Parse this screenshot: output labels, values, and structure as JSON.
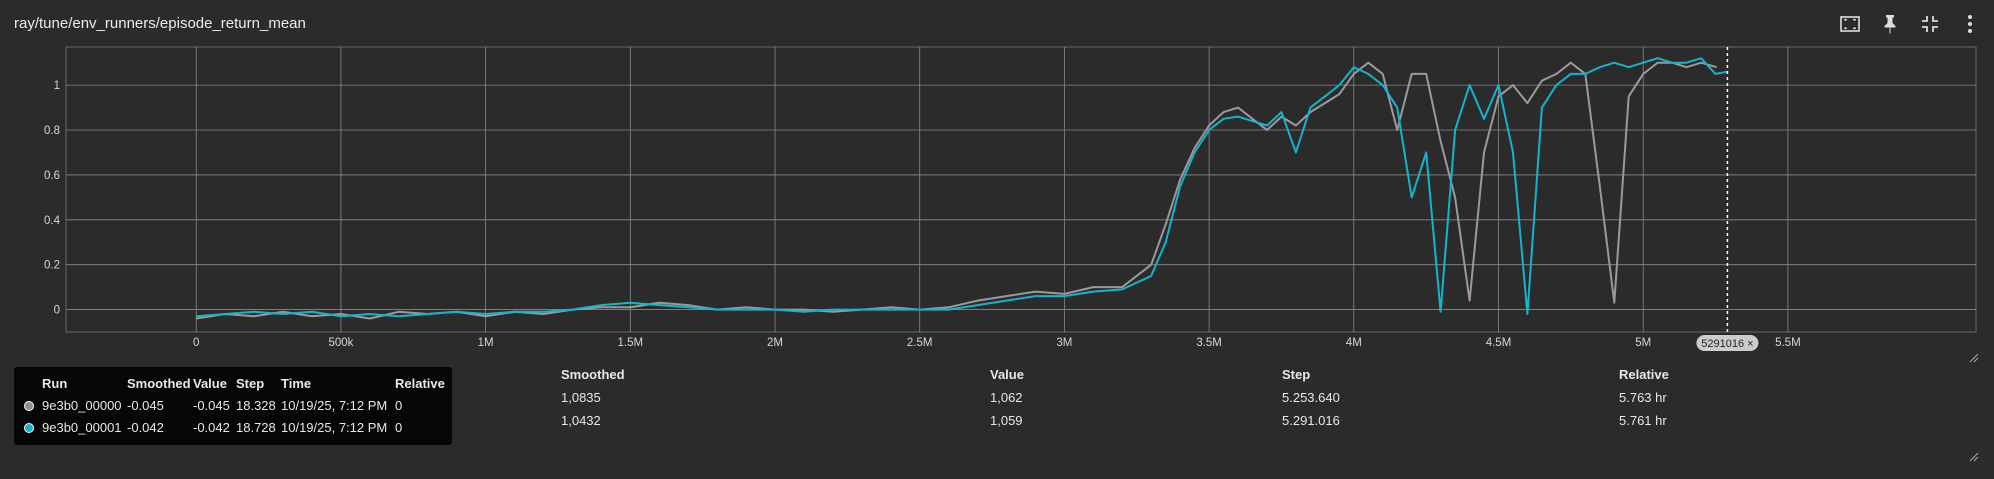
{
  "header": {
    "title": "ray/tune/env_runners/episode_return_mean"
  },
  "toolbar_icons": [
    "fit-domain-icon",
    "pin-icon",
    "collapse-icon",
    "more-icon"
  ],
  "cursor_label": "5291016 ×",
  "legend": {
    "headers": [
      "Run",
      "Smoothed",
      "Value",
      "Step",
      "Time",
      "Relative"
    ],
    "rows": [
      {
        "color": "#8e8e8e",
        "run": "9e3b0_00000",
        "smoothed": "-0.045",
        "value": "-0.045",
        "step": "18.328",
        "time": "10/19/25, 7:12 PM",
        "relative": "0"
      },
      {
        "color": "#12b5cb",
        "run": "9e3b0_00001",
        "smoothed": "-0.042",
        "value": "-0.042",
        "step": "18.728",
        "time": "10/19/25, 7:12 PM",
        "relative": "0"
      }
    ]
  },
  "table": {
    "headers": [
      "Smoothed",
      "Value",
      "Step",
      "Relative"
    ],
    "rows": [
      [
        "1,0835",
        "1,062",
        "5.253.640",
        "5.763 hr"
      ],
      [
        "1,0432",
        "1,059",
        "5.291.016",
        "5.761 hr"
      ]
    ]
  },
  "chart_data": {
    "type": "line",
    "title": "ray/tune/env_runners/episode_return_mean",
    "xlabel": "",
    "ylabel": "",
    "xlim": [
      -450000,
      6150000
    ],
    "ylim": [
      -0.1,
      1.17
    ],
    "x_ticks": [
      0,
      500000,
      1000000,
      1500000,
      2000000,
      2500000,
      3000000,
      3500000,
      4000000,
      4500000,
      5000000,
      5500000
    ],
    "x_tick_labels": [
      "0",
      "500k",
      "1M",
      "1.5M",
      "2M",
      "2.5M",
      "3M",
      "3.5M",
      "4M",
      "4.5M",
      "5M",
      "5.5M"
    ],
    "y_ticks": [
      0,
      0.2,
      0.4,
      0.6,
      0.8,
      1
    ],
    "y_tick_labels": [
      "0",
      "0.2",
      "0.4",
      "0.6",
      "0.8",
      "1"
    ],
    "grid": true,
    "cursor_x": 5291016,
    "series": [
      {
        "name": "9e3b0_00000",
        "color": "#9a9a9a",
        "points": [
          [
            0,
            -0.04
          ],
          [
            100000,
            -0.02
          ],
          [
            200000,
            -0.03
          ],
          [
            300000,
            -0.01
          ],
          [
            400000,
            -0.03
          ],
          [
            500000,
            -0.02
          ],
          [
            600000,
            -0.04
          ],
          [
            700000,
            -0.01
          ],
          [
            800000,
            -0.02
          ],
          [
            900000,
            -0.01
          ],
          [
            1000000,
            -0.03
          ],
          [
            1100000,
            -0.01
          ],
          [
            1200000,
            -0.02
          ],
          [
            1300000,
            0
          ],
          [
            1400000,
            0.01
          ],
          [
            1500000,
            0.01
          ],
          [
            1600000,
            0.03
          ],
          [
            1700000,
            0.02
          ],
          [
            1800000,
            0
          ],
          [
            1900000,
            0.01
          ],
          [
            2000000,
            0
          ],
          [
            2100000,
            0
          ],
          [
            2200000,
            -0.01
          ],
          [
            2300000,
            0
          ],
          [
            2400000,
            0.01
          ],
          [
            2500000,
            0
          ],
          [
            2600000,
            0.01
          ],
          [
            2700000,
            0.04
          ],
          [
            2800000,
            0.06
          ],
          [
            2900000,
            0.08
          ],
          [
            3000000,
            0.07
          ],
          [
            3100000,
            0.1
          ],
          [
            3200000,
            0.1
          ],
          [
            3300000,
            0.2
          ],
          [
            3350000,
            0.38
          ],
          [
            3400000,
            0.58
          ],
          [
            3450000,
            0.72
          ],
          [
            3500000,
            0.82
          ],
          [
            3550000,
            0.88
          ],
          [
            3600000,
            0.9
          ],
          [
            3650000,
            0.85
          ],
          [
            3700000,
            0.8
          ],
          [
            3750000,
            0.86
          ],
          [
            3800000,
            0.82
          ],
          [
            3850000,
            0.88
          ],
          [
            3900000,
            0.92
          ],
          [
            3950000,
            0.96
          ],
          [
            4000000,
            1.05
          ],
          [
            4050000,
            1.1
          ],
          [
            4100000,
            1.05
          ],
          [
            4150000,
            0.8
          ],
          [
            4200000,
            1.05
          ],
          [
            4250000,
            1.05
          ],
          [
            4300000,
            0.75
          ],
          [
            4350000,
            0.5
          ],
          [
            4400000,
            0.04
          ],
          [
            4450000,
            0.7
          ],
          [
            4500000,
            0.95
          ],
          [
            4550000,
            1.0
          ],
          [
            4600000,
            0.92
          ],
          [
            4650000,
            1.02
          ],
          [
            4700000,
            1.05
          ],
          [
            4750000,
            1.1
          ],
          [
            4800000,
            1.05
          ],
          [
            4850000,
            0.55
          ],
          [
            4900000,
            0.03
          ],
          [
            4950000,
            0.95
          ],
          [
            5000000,
            1.05
          ],
          [
            5050000,
            1.1
          ],
          [
            5100000,
            1.1
          ],
          [
            5150000,
            1.08
          ],
          [
            5200000,
            1.1
          ],
          [
            5253640,
            1.08
          ]
        ]
      },
      {
        "name": "9e3b0_00001",
        "color": "#12b5cb",
        "points": [
          [
            0,
            -0.03
          ],
          [
            100000,
            -0.02
          ],
          [
            200000,
            -0.01
          ],
          [
            300000,
            -0.02
          ],
          [
            400000,
            -0.01
          ],
          [
            500000,
            -0.03
          ],
          [
            600000,
            -0.02
          ],
          [
            700000,
            -0.03
          ],
          [
            800000,
            -0.02
          ],
          [
            900000,
            -0.01
          ],
          [
            1000000,
            -0.02
          ],
          [
            1100000,
            -0.01
          ],
          [
            1200000,
            -0.01
          ],
          [
            1300000,
            0
          ],
          [
            1400000,
            0.02
          ],
          [
            1500000,
            0.03
          ],
          [
            1600000,
            0.02
          ],
          [
            1700000,
            0.01
          ],
          [
            1800000,
            0
          ],
          [
            1900000,
            0
          ],
          [
            2000000,
            0
          ],
          [
            2100000,
            -0.01
          ],
          [
            2200000,
            0
          ],
          [
            2300000,
            0
          ],
          [
            2400000,
            0
          ],
          [
            2500000,
            0
          ],
          [
            2600000,
            0
          ],
          [
            2700000,
            0.02
          ],
          [
            2800000,
            0.04
          ],
          [
            2900000,
            0.06
          ],
          [
            3000000,
            0.06
          ],
          [
            3100000,
            0.08
          ],
          [
            3200000,
            0.09
          ],
          [
            3300000,
            0.15
          ],
          [
            3350000,
            0.3
          ],
          [
            3400000,
            0.55
          ],
          [
            3450000,
            0.7
          ],
          [
            3500000,
            0.8
          ],
          [
            3550000,
            0.85
          ],
          [
            3600000,
            0.86
          ],
          [
            3650000,
            0.84
          ],
          [
            3700000,
            0.82
          ],
          [
            3750000,
            0.88
          ],
          [
            3800000,
            0.7
          ],
          [
            3850000,
            0.9
          ],
          [
            3900000,
            0.95
          ],
          [
            3950000,
            1.0
          ],
          [
            4000000,
            1.08
          ],
          [
            4050000,
            1.05
          ],
          [
            4100000,
            1.0
          ],
          [
            4150000,
            0.9
          ],
          [
            4200000,
            0.5
          ],
          [
            4250000,
            0.7
          ],
          [
            4300000,
            -0.01
          ],
          [
            4350000,
            0.8
          ],
          [
            4400000,
            1.0
          ],
          [
            4450000,
            0.85
          ],
          [
            4500000,
            1.0
          ],
          [
            4550000,
            0.7
          ],
          [
            4600000,
            -0.02
          ],
          [
            4650000,
            0.9
          ],
          [
            4700000,
            1.0
          ],
          [
            4750000,
            1.05
          ],
          [
            4800000,
            1.05
          ],
          [
            4850000,
            1.08
          ],
          [
            4900000,
            1.1
          ],
          [
            4950000,
            1.08
          ],
          [
            5000000,
            1.1
          ],
          [
            5050000,
            1.12
          ],
          [
            5100000,
            1.1
          ],
          [
            5150000,
            1.1
          ],
          [
            5200000,
            1.12
          ],
          [
            5250000,
            1.05
          ],
          [
            5291016,
            1.06
          ]
        ]
      }
    ]
  }
}
